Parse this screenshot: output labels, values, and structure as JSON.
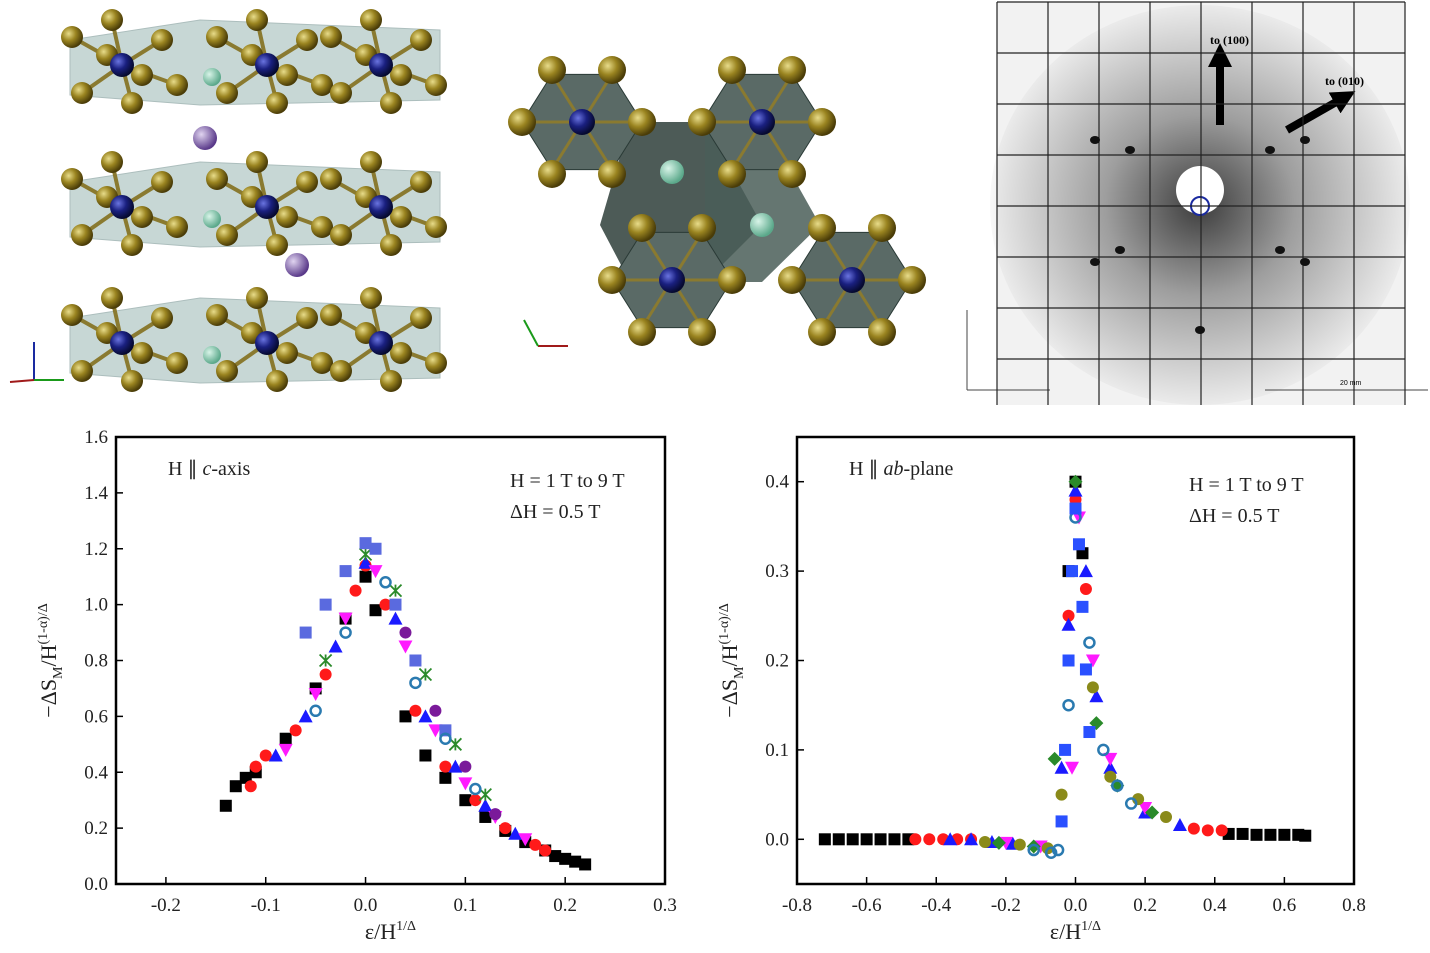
{
  "panels": {
    "arrow_100": "to (100)",
    "arrow_010": "to (010)",
    "scale_bar": "20 mm"
  },
  "chart_data": [
    {
      "type": "scatter",
      "annotation_parts": [
        "H ∥ ",
        "c",
        "-axis"
      ],
      "annotations": [
        "H = 1 T to 9 T",
        "ΔH = 0.5 T"
      ],
      "xlabel_parts": [
        "ε/H",
        "1/Δ"
      ],
      "ylabel_parts": [
        "−ΔS",
        "M",
        "/H",
        "(1-α)/Δ"
      ],
      "xlim": [
        -0.25,
        0.3
      ],
      "ylim": [
        0,
        1.6
      ],
      "xticks": [
        -0.2,
        -0.1,
        {
          "value": 0,
          "label": "0.0"
        },
        0.1,
        0.2,
        0.3
      ],
      "yticks": [
        {
          "value": 0,
          "label": "0.0"
        },
        0.2,
        0.4,
        0.6,
        0.8,
        {
          "value": 1,
          "label": "1.0"
        },
        1.2,
        1.4,
        1.6
      ],
      "series": [
        {
          "color": "#000000",
          "marker": "square",
          "x": [
            -0.14,
            -0.13,
            -0.12,
            -0.11,
            -0.08,
            -0.05,
            -0.02,
            0,
            0.01,
            0.04,
            0.06,
            0.08,
            0.1,
            0.12,
            0.14,
            0.16,
            0.18,
            0.19,
            0.2,
            0.21,
            0.22
          ],
          "values": [
            0.28,
            0.35,
            0.38,
            0.4,
            0.52,
            0.7,
            0.95,
            1.1,
            0.98,
            0.6,
            0.46,
            0.38,
            0.3,
            0.24,
            0.19,
            0.15,
            0.12,
            0.1,
            0.09,
            0.08,
            0.07
          ]
        },
        {
          "color": "#ff1a1a",
          "marker": "circle",
          "x": [
            -0.115,
            -0.11,
            -0.1,
            -0.07,
            -0.04,
            -0.01,
            0,
            0.02,
            0.05,
            0.08,
            0.11,
            0.14,
            0.17,
            0.18
          ],
          "values": [
            0.35,
            0.42,
            0.46,
            0.55,
            0.75,
            1.05,
            1.14,
            1.0,
            0.62,
            0.42,
            0.3,
            0.2,
            0.14,
            0.12
          ]
        },
        {
          "color": "#1a1aff",
          "marker": "triangle",
          "x": [
            -0.09,
            -0.06,
            -0.03,
            0,
            0.03,
            0.06,
            0.09,
            0.12,
            0.15
          ],
          "values": [
            0.46,
            0.6,
            0.85,
            1.15,
            0.95,
            0.6,
            0.42,
            0.28,
            0.18
          ]
        },
        {
          "color": "#ff1aff",
          "marker": "triangle-down",
          "x": [
            -0.08,
            -0.05,
            -0.02,
            0.01,
            0.04,
            0.07,
            0.1,
            0.13,
            0.16
          ],
          "values": [
            0.48,
            0.68,
            0.95,
            1.12,
            0.85,
            0.55,
            0.36,
            0.24,
            0.16
          ]
        },
        {
          "color": "#2a8a2a",
          "marker": "cross",
          "x": [
            -0.04,
            0,
            0.03,
            0.06,
            0.09,
            0.12
          ],
          "values": [
            0.8,
            1.18,
            1.05,
            0.75,
            0.5,
            0.32
          ]
        },
        {
          "color": "#5a6adf",
          "marker": "square",
          "x": [
            -0.06,
            -0.04,
            -0.02,
            0,
            0.01,
            0.03,
            0.05,
            0.08
          ],
          "values": [
            0.9,
            1.0,
            1.12,
            1.22,
            1.2,
            1.0,
            0.8,
            0.55
          ]
        },
        {
          "color": "#7a1a9a",
          "marker": "circle",
          "x": [
            0.04,
            0.07,
            0.1,
            0.13
          ],
          "values": [
            0.9,
            0.62,
            0.42,
            0.25
          ]
        },
        {
          "color": "#2a7ab0",
          "marker": "open-circle",
          "x": [
            -0.05,
            -0.02,
            0.02,
            0.05,
            0.08,
            0.11
          ],
          "values": [
            0.62,
            0.9,
            1.08,
            0.72,
            0.52,
            0.34
          ]
        }
      ]
    },
    {
      "type": "scatter",
      "annotation_parts": [
        "H ∥ ",
        "ab",
        "-plane"
      ],
      "annotations": [
        "H = 1 T to 9 T",
        "ΔH = 0.5 T"
      ],
      "xlabel_parts": [
        "ε/H",
        "1/Δ"
      ],
      "ylabel_parts": [
        "−ΔS",
        "M",
        "/H",
        "(1-α)/Δ"
      ],
      "xlim": [
        -0.8,
        0.8
      ],
      "ylim": [
        -0.05,
        0.45
      ],
      "xticks": [
        -0.8,
        -0.6,
        -0.4,
        -0.2,
        {
          "value": 0,
          "label": "0.0"
        },
        0.2,
        0.4,
        0.6,
        0.8
      ],
      "yticks": [
        {
          "value": 0,
          "label": "0.0"
        },
        0.1,
        0.2,
        0.3,
        0.4
      ],
      "series": [
        {
          "color": "#000000",
          "marker": "square",
          "x": [
            -0.72,
            -0.68,
            -0.64,
            -0.6,
            -0.56,
            -0.52,
            -0.48,
            -0.02,
            0,
            0.02,
            0.44,
            0.48,
            0.52,
            0.56,
            0.6,
            0.64,
            0.66
          ],
          "values": [
            0,
            0,
            0,
            0,
            0,
            0,
            0,
            0.3,
            0.4,
            0.32,
            0.006,
            0.006,
            0.005,
            0.005,
            0.005,
            0.005,
            0.004
          ]
        },
        {
          "color": "#ff1a1a",
          "marker": "circle",
          "x": [
            -0.46,
            -0.42,
            -0.38,
            -0.34,
            -0.3,
            -0.02,
            0,
            0.03,
            0.34,
            0.38,
            0.42
          ],
          "values": [
            0,
            0,
            0,
            0,
            0,
            0.25,
            0.38,
            0.28,
            0.012,
            0.01,
            0.01
          ]
        },
        {
          "color": "#1a1aff",
          "marker": "triangle",
          "x": [
            -0.36,
            -0.3,
            -0.24,
            -0.18,
            -0.04,
            -0.02,
            0,
            0.03,
            0.06,
            0.1,
            0.2,
            0.3
          ],
          "values": [
            0,
            0,
            -0.003,
            -0.005,
            0.08,
            0.24,
            0.39,
            0.3,
            0.16,
            0.08,
            0.03,
            0.016
          ]
        },
        {
          "color": "#ff1aff",
          "marker": "triangle-down",
          "x": [
            -0.2,
            -0.1,
            -0.01,
            0.01,
            0.05,
            0.1,
            0.2
          ],
          "values": [
            -0.004,
            -0.008,
            0.08,
            0.36,
            0.2,
            0.09,
            0.035
          ]
        },
        {
          "color": "#2a8a2a",
          "marker": "diamond",
          "x": [
            -0.22,
            -0.12,
            -0.06,
            0,
            0.06,
            0.12,
            0.22
          ],
          "values": [
            -0.004,
            -0.008,
            0.09,
            0.4,
            0.13,
            0.06,
            0.03
          ]
        },
        {
          "color": "#8a8a1a",
          "marker": "circle",
          "x": [
            -0.26,
            -0.16,
            -0.08,
            -0.04,
            0,
            0.05,
            0.1,
            0.18,
            0.26
          ],
          "values": [
            -0.003,
            -0.006,
            -0.01,
            0.05,
            0.37,
            0.17,
            0.07,
            0.045,
            0.025
          ]
        },
        {
          "color": "#2a7ab0",
          "marker": "open-circle",
          "x": [
            -0.12,
            -0.07,
            -0.05,
            -0.02,
            0,
            0.04,
            0.08,
            0.12,
            0.16
          ],
          "values": [
            -0.012,
            -0.015,
            -0.012,
            0.15,
            0.36,
            0.22,
            0.1,
            0.06,
            0.04
          ]
        },
        {
          "color": "#2a50ff",
          "marker": "square",
          "x": [
            -0.04,
            -0.03,
            -0.02,
            -0.01,
            0,
            0.01,
            0.02,
            0.03,
            0.04
          ],
          "values": [
            0.02,
            0.1,
            0.2,
            0.3,
            0.37,
            0.33,
            0.26,
            0.19,
            0.12
          ]
        }
      ]
    }
  ]
}
